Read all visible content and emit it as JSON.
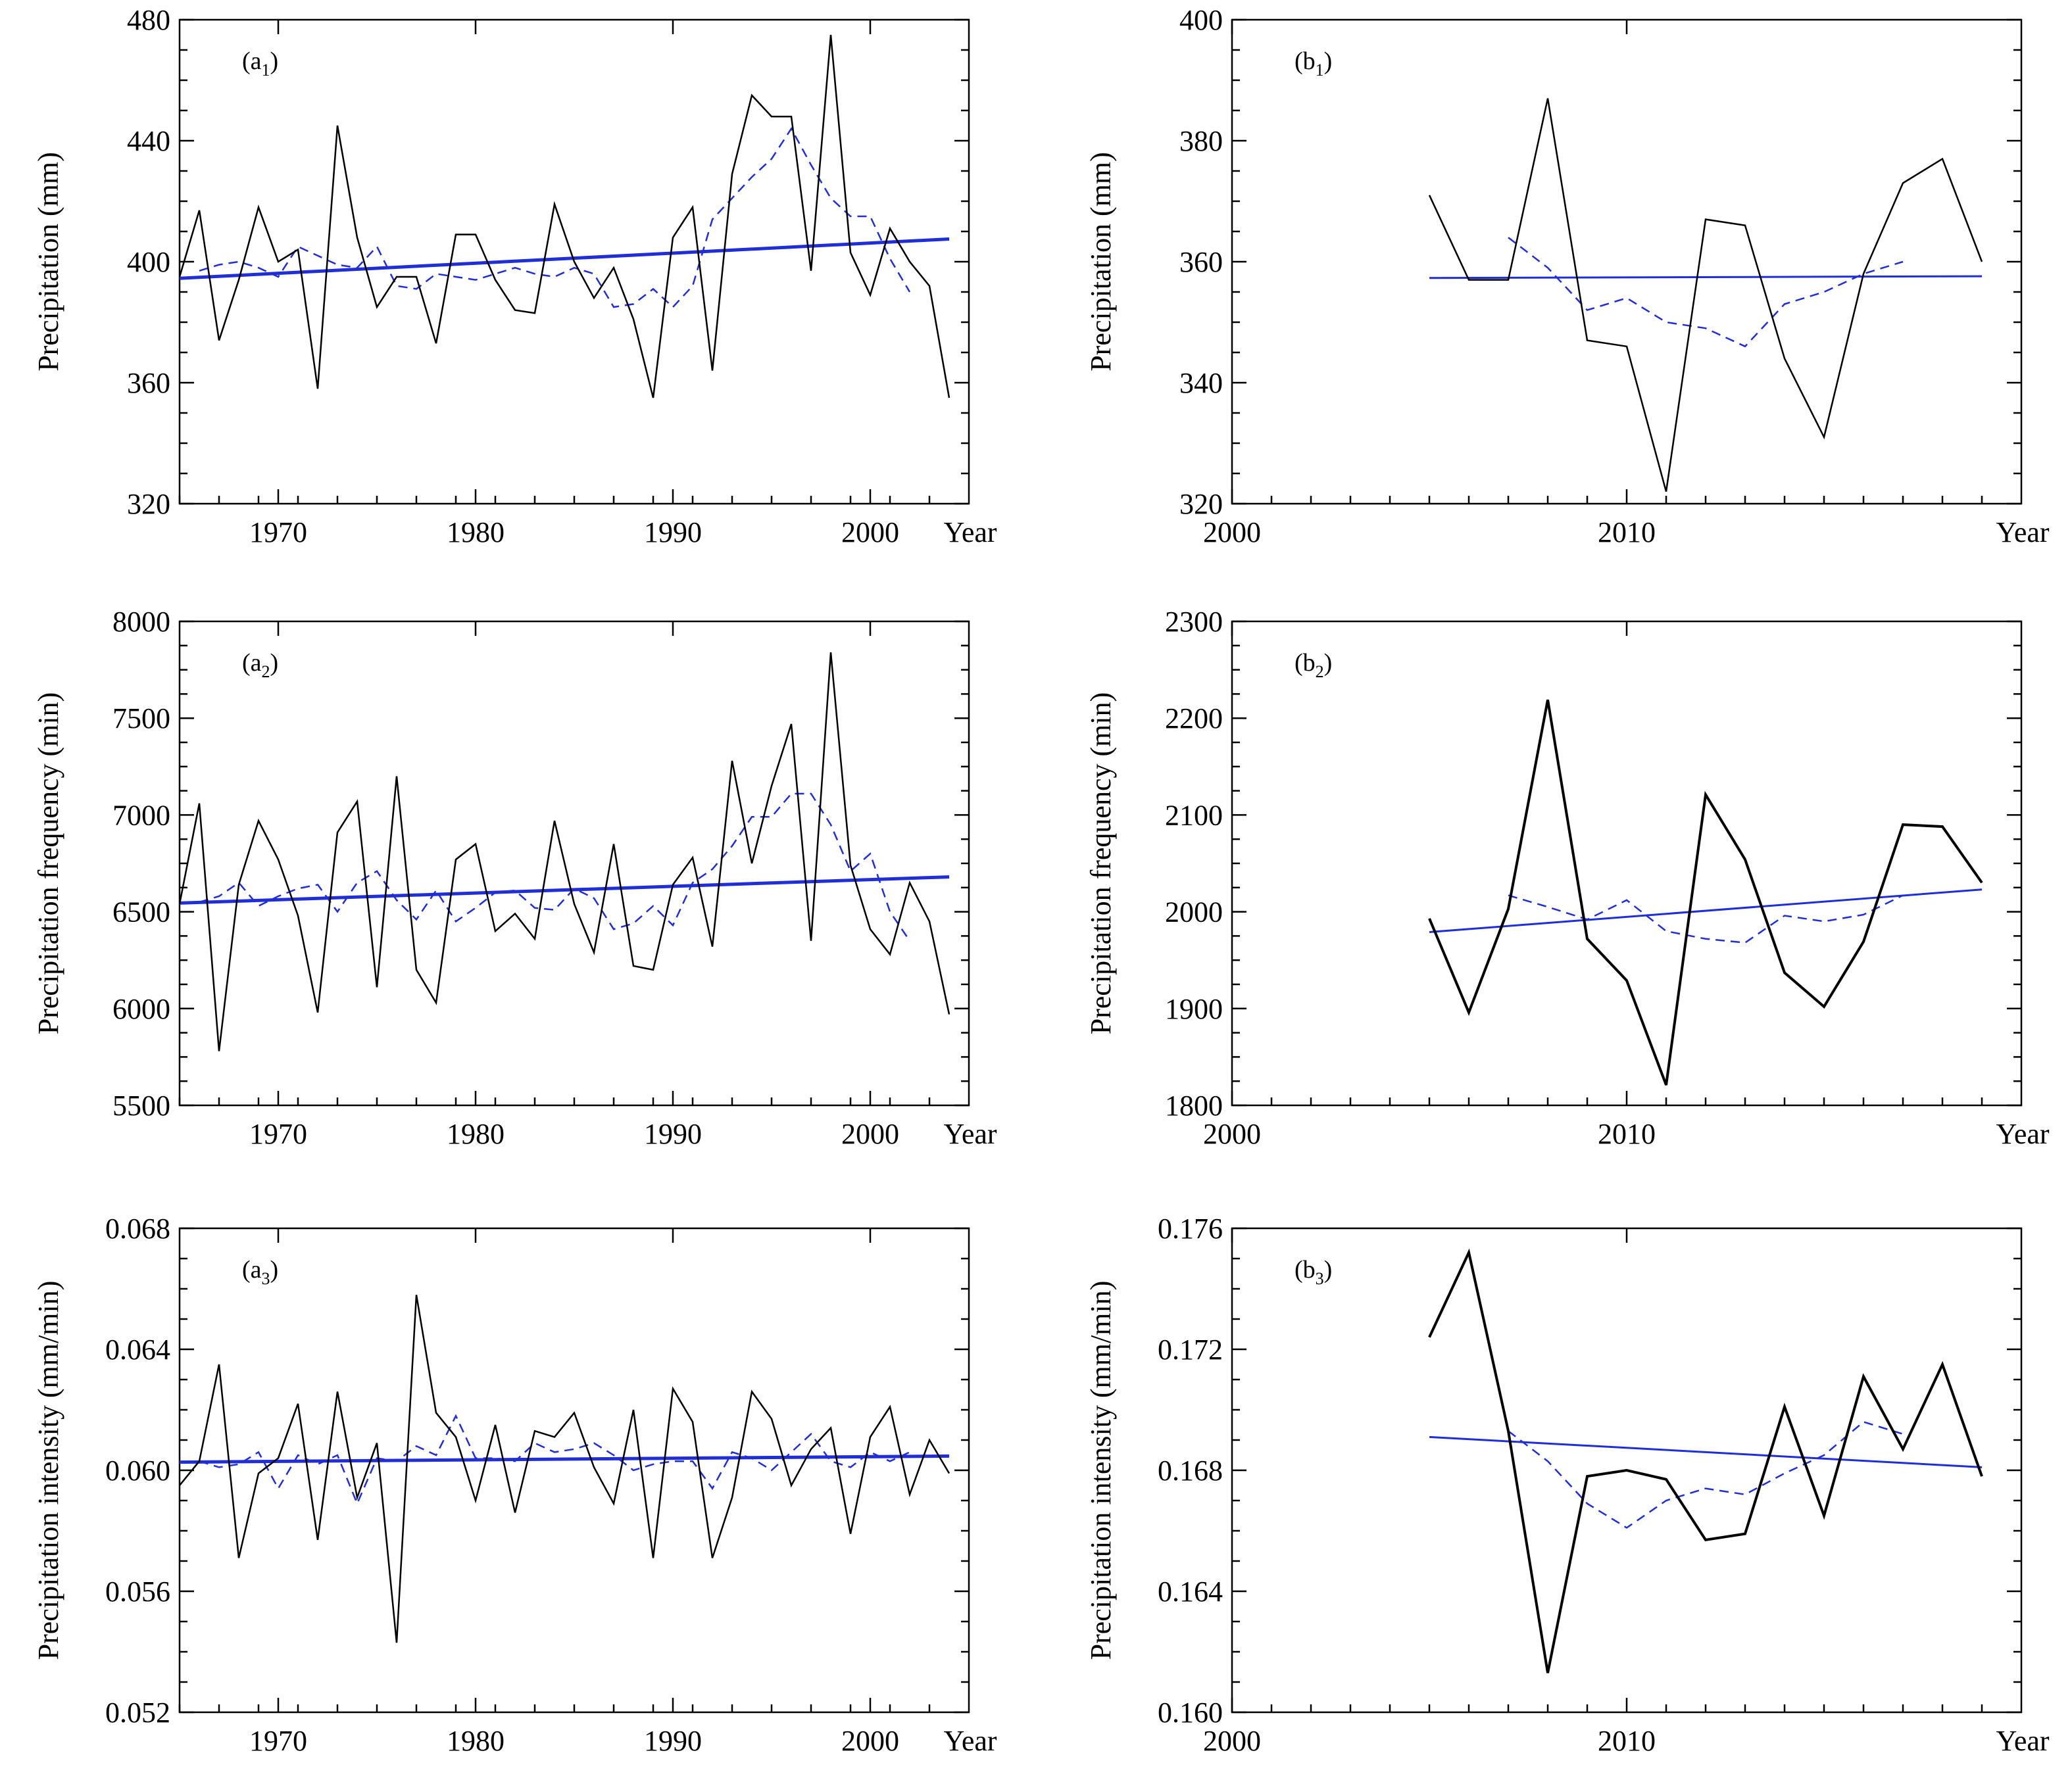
{
  "colors": {
    "observed": "#000000",
    "moving_average": "#1f2ed6",
    "trend": "#1f2ed6"
  },
  "chart_data": [
    {
      "id": "a1",
      "type": "line",
      "panel_label": "a",
      "panel_sub": "1",
      "ylabel": "Precipitation (mm)",
      "xlabel": "Year",
      "xlim": [
        1965,
        2005
      ],
      "ylim": [
        320,
        480
      ],
      "xticks": [
        1970,
        1980,
        1990,
        2000
      ],
      "yticks": [
        320,
        360,
        400,
        440,
        480
      ],
      "ytick_labels": [
        "320",
        "360",
        "400",
        "440",
        "480"
      ],
      "observed": {
        "x": [
          1965,
          1966,
          1967,
          1968,
          1969,
          1970,
          1971,
          1972,
          1973,
          1974,
          1975,
          1976,
          1977,
          1978,
          1979,
          1980,
          1981,
          1982,
          1983,
          1984,
          1985,
          1986,
          1987,
          1988,
          1989,
          1990,
          1991,
          1992,
          1993,
          1994,
          1995,
          1996,
          1997,
          1998,
          1999,
          2000,
          2001,
          2002,
          2003,
          2004
        ],
        "y": [
          395,
          417,
          374,
          394,
          418,
          400,
          404,
          358,
          445,
          408,
          385,
          395,
          395,
          373,
          409,
          409,
          394,
          384,
          383,
          419,
          400,
          388,
          398,
          381,
          355,
          408,
          418,
          364,
          429,
          455,
          448,
          448,
          397,
          475,
          403,
          389,
          411,
          400,
          392,
          355
        ]
      },
      "moving_average": {
        "x": [
          1966,
          1967,
          1968,
          1969,
          1970,
          1971,
          1972,
          1973,
          1974,
          1975,
          1976,
          1977,
          1978,
          1979,
          1980,
          1981,
          1982,
          1983,
          1984,
          1985,
          1986,
          1987,
          1988,
          1989,
          1990,
          1991,
          1992,
          1993,
          1994,
          1995,
          1996,
          1997,
          1998,
          1999,
          2000,
          2001,
          2002
        ],
        "y": [
          397,
          399,
          400,
          398,
          395,
          405,
          402,
          399,
          398,
          405,
          392,
          391,
          396,
          395,
          394,
          396,
          398,
          396,
          395,
          398,
          396,
          385,
          386,
          391,
          385,
          392,
          414,
          421,
          428,
          434,
          444,
          432,
          421,
          415,
          415,
          401,
          390
        ]
      },
      "trend": {
        "x": [
          1965,
          2004
        ],
        "y": [
          394.5,
          407.5
        ]
      },
      "line_weights": {
        "observed": 2.5,
        "moving_average": 2.5,
        "trend": 5
      }
    },
    {
      "id": "b1",
      "type": "line",
      "panel_label": "b",
      "panel_sub": "1",
      "ylabel": "Precipitation (mm)",
      "xlabel": "Year",
      "xlim": [
        2000,
        2020
      ],
      "ylim": [
        320,
        400
      ],
      "xticks": [
        2000,
        2010
      ],
      "yticks": [
        320,
        340,
        360,
        380,
        400
      ],
      "ytick_labels": [
        "320",
        "340",
        "360",
        "380",
        "400"
      ],
      "observed": {
        "x": [
          2005,
          2006,
          2007,
          2008,
          2009,
          2010,
          2011,
          2012,
          2013,
          2014,
          2015,
          2016,
          2017,
          2018,
          2019
        ],
        "y": [
          371,
          357,
          357,
          387,
          347,
          346,
          322,
          367,
          366,
          344,
          331,
          358,
          373,
          377,
          360
        ]
      },
      "moving_average": {
        "x": [
          2007,
          2008,
          2009,
          2010,
          2011,
          2012,
          2013,
          2014,
          2015,
          2016,
          2017
        ],
        "y": [
          364,
          359,
          352,
          354,
          350,
          349,
          346,
          353,
          355,
          358,
          360
        ]
      },
      "trend": {
        "x": [
          2005,
          2019
        ],
        "y": [
          357.3,
          357.6
        ]
      },
      "line_weights": {
        "observed": 2.5,
        "moving_average": 2.5,
        "trend": 3
      }
    },
    {
      "id": "a2",
      "type": "line",
      "panel_label": "a",
      "panel_sub": "2",
      "ylabel": "Precipitation frequency (min)",
      "xlabel": "Year",
      "xlim": [
        1965,
        2005
      ],
      "ylim": [
        5500,
        8000
      ],
      "xticks": [
        1970,
        1980,
        1990,
        2000
      ],
      "yticks": [
        5500,
        6000,
        6500,
        7000,
        7500,
        8000
      ],
      "ytick_labels": [
        "5500",
        "6000",
        "6500",
        "7000",
        "7500",
        "8000"
      ],
      "observed": {
        "x": [
          1965,
          1966,
          1967,
          1968,
          1969,
          1970,
          1971,
          1972,
          1973,
          1974,
          1975,
          1976,
          1977,
          1978,
          1979,
          1980,
          1981,
          1982,
          1983,
          1984,
          1985,
          1986,
          1987,
          1988,
          1989,
          1990,
          1991,
          1992,
          1993,
          1994,
          1995,
          1996,
          1997,
          1998,
          1999,
          2000,
          2001,
          2002,
          2003,
          2004
        ],
        "y": [
          6540,
          7060,
          5780,
          6640,
          6970,
          6770,
          6480,
          5980,
          6910,
          7070,
          6110,
          7200,
          6200,
          6030,
          6770,
          6850,
          6400,
          6490,
          6360,
          6970,
          6540,
          6290,
          6850,
          6220,
          6200,
          6640,
          6780,
          6320,
          7280,
          6750,
          7150,
          7470,
          6350,
          7840,
          6740,
          6410,
          6280,
          6650,
          6450,
          5970
        ]
      },
      "moving_average": {
        "x": [
          1966,
          1967,
          1968,
          1969,
          1970,
          1971,
          1972,
          1973,
          1974,
          1975,
          1976,
          1977,
          1978,
          1979,
          1980,
          1981,
          1982,
          1983,
          1984,
          1985,
          1986,
          1987,
          1988,
          1989,
          1990,
          1991,
          1992,
          1993,
          1994,
          1995,
          1996,
          1997,
          1998,
          1999,
          2000,
          2001,
          2002
        ],
        "y": [
          6550,
          6580,
          6650,
          6530,
          6580,
          6620,
          6640,
          6500,
          6650,
          6710,
          6560,
          6460,
          6610,
          6450,
          6520,
          6600,
          6610,
          6520,
          6510,
          6620,
          6570,
          6410,
          6440,
          6530,
          6430,
          6650,
          6720,
          6840,
          6990,
          6990,
          7110,
          7110,
          6950,
          6710,
          6800,
          6500,
          6350
        ]
      },
      "trend": {
        "x": [
          1965,
          2004
        ],
        "y": [
          6545,
          6680
        ]
      },
      "line_weights": {
        "observed": 2.5,
        "moving_average": 2.5,
        "trend": 5
      }
    },
    {
      "id": "b2",
      "type": "line",
      "panel_label": "b",
      "panel_sub": "2",
      "ylabel": "Precipitation frequency (min)",
      "xlabel": "Year",
      "xlim": [
        2000,
        2020
      ],
      "ylim": [
        1800,
        2300
      ],
      "xticks": [
        2000,
        2010
      ],
      "yticks": [
        1800,
        1900,
        2000,
        2100,
        2200,
        2300
      ],
      "ytick_labels": [
        "1800",
        "1900",
        "2000",
        "2100",
        "2200",
        "2300"
      ],
      "observed": {
        "x": [
          2005,
          2006,
          2007,
          2008,
          2009,
          2010,
          2011,
          2012,
          2013,
          2014,
          2015,
          2016,
          2017,
          2018,
          2019
        ],
        "y": [
          1993,
          1896,
          2003,
          2219,
          1972,
          1929,
          1821,
          2121,
          2054,
          1937,
          1902,
          1969,
          2090,
          2088,
          2030
        ]
      },
      "moving_average": {
        "x": [
          2007,
          2008,
          2009,
          2010,
          2011,
          2012,
          2013,
          2014,
          2015,
          2016,
          2017
        ],
        "y": [
          2017,
          2005,
          1992,
          2012,
          1980,
          1972,
          1968,
          1996,
          1990,
          1997,
          2017
        ]
      },
      "trend": {
        "x": [
          2005,
          2019
        ],
        "y": [
          1979,
          2023
        ]
      },
      "line_weights": {
        "observed": 4,
        "moving_average": 2.5,
        "trend": 3
      }
    },
    {
      "id": "a3",
      "type": "line",
      "panel_label": "a",
      "panel_sub": "3",
      "ylabel": "Precipitation intensity (mm/min)",
      "xlabel": "Year",
      "xlim": [
        1965,
        2005
      ],
      "ylim": [
        0.052,
        0.068
      ],
      "xticks": [
        1970,
        1980,
        1990,
        2000
      ],
      "yticks": [
        0.052,
        0.056,
        0.06,
        0.064,
        0.068
      ],
      "ytick_labels": [
        "0.052",
        "0.056",
        "0.060",
        "0.064",
        "0.068"
      ],
      "observed": {
        "x": [
          1965,
          1966,
          1967,
          1968,
          1969,
          1970,
          1971,
          1972,
          1973,
          1974,
          1975,
          1976,
          1977,
          1978,
          1979,
          1980,
          1981,
          1982,
          1983,
          1984,
          1985,
          1986,
          1987,
          1988,
          1989,
          1990,
          1991,
          1992,
          1993,
          1994,
          1995,
          1996,
          1997,
          1998,
          1999,
          2000,
          2001,
          2002,
          2003,
          2004
        ],
        "y": [
          0.0595,
          0.0603,
          0.0635,
          0.0571,
          0.0599,
          0.0604,
          0.0622,
          0.0577,
          0.0626,
          0.0591,
          0.0609,
          0.0543,
          0.0658,
          0.0619,
          0.0611,
          0.059,
          0.0615,
          0.0586,
          0.0613,
          0.0611,
          0.0619,
          0.0601,
          0.0589,
          0.062,
          0.0571,
          0.0627,
          0.0616,
          0.0571,
          0.0591,
          0.0626,
          0.0617,
          0.0595,
          0.0607,
          0.0614,
          0.0579,
          0.0611,
          0.0621,
          0.0592,
          0.061,
          0.0599
        ]
      },
      "moving_average": {
        "x": [
          1966,
          1967,
          1968,
          1969,
          1970,
          1971,
          1972,
          1973,
          1974,
          1975,
          1976,
          1977,
          1978,
          1979,
          1980,
          1981,
          1982,
          1983,
          1984,
          1985,
          1986,
          1987,
          1988,
          1989,
          1990,
          1991,
          1992,
          1993,
          1994,
          1995,
          1996,
          1997,
          1998,
          1999,
          2000,
          2001,
          2002
        ],
        "y": [
          0.0603,
          0.0601,
          0.0602,
          0.0606,
          0.0594,
          0.0605,
          0.0602,
          0.0605,
          0.0589,
          0.0604,
          0.0603,
          0.0608,
          0.0605,
          0.0618,
          0.0604,
          0.0604,
          0.0603,
          0.0609,
          0.0606,
          0.0607,
          0.0609,
          0.0605,
          0.06,
          0.0602,
          0.0603,
          0.0603,
          0.0594,
          0.0606,
          0.0604,
          0.06,
          0.0606,
          0.0612,
          0.0603,
          0.0601,
          0.0606,
          0.0603,
          0.0606
        ]
      },
      "trend": {
        "x": [
          1965,
          2004
        ],
        "y": [
          0.06027,
          0.06047
        ]
      },
      "line_weights": {
        "observed": 2.5,
        "moving_average": 2.5,
        "trend": 5
      }
    },
    {
      "id": "b3",
      "type": "line",
      "panel_label": "b",
      "panel_sub": "3",
      "ylabel": "Precipitation intensity (mm/min)",
      "xlabel": "Year",
      "xlim": [
        2000,
        2020
      ],
      "ylim": [
        0.16,
        0.176
      ],
      "xticks": [
        2000,
        2010
      ],
      "yticks": [
        0.16,
        0.164,
        0.168,
        0.172,
        0.176
      ],
      "ytick_labels": [
        "0.160",
        "0.164",
        "0.168",
        "0.172",
        "0.176"
      ],
      "observed": {
        "x": [
          2005,
          2006,
          2007,
          2008,
          2009,
          2010,
          2011,
          2012,
          2013,
          2014,
          2015,
          2016,
          2017,
          2018,
          2019
        ],
        "y": [
          0.1724,
          0.1752,
          0.1693,
          0.1613,
          0.1678,
          0.168,
          0.1677,
          0.1657,
          0.1659,
          0.1701,
          0.1665,
          0.1711,
          0.1687,
          0.1715,
          0.1678
        ]
      },
      "moving_average": {
        "x": [
          2007,
          2008,
          2009,
          2010,
          2011,
          2012,
          2013,
          2014,
          2015,
          2016,
          2017
        ],
        "y": [
          0.1693,
          0.1683,
          0.1669,
          0.1661,
          0.167,
          0.1674,
          0.1672,
          0.1679,
          0.1685,
          0.1696,
          0.1692
        ]
      },
      "trend": {
        "x": [
          2005,
          2019
        ],
        "y": [
          0.1691,
          0.1681
        ]
      },
      "line_weights": {
        "observed": 4,
        "moving_average": 2.5,
        "trend": 3
      }
    }
  ]
}
